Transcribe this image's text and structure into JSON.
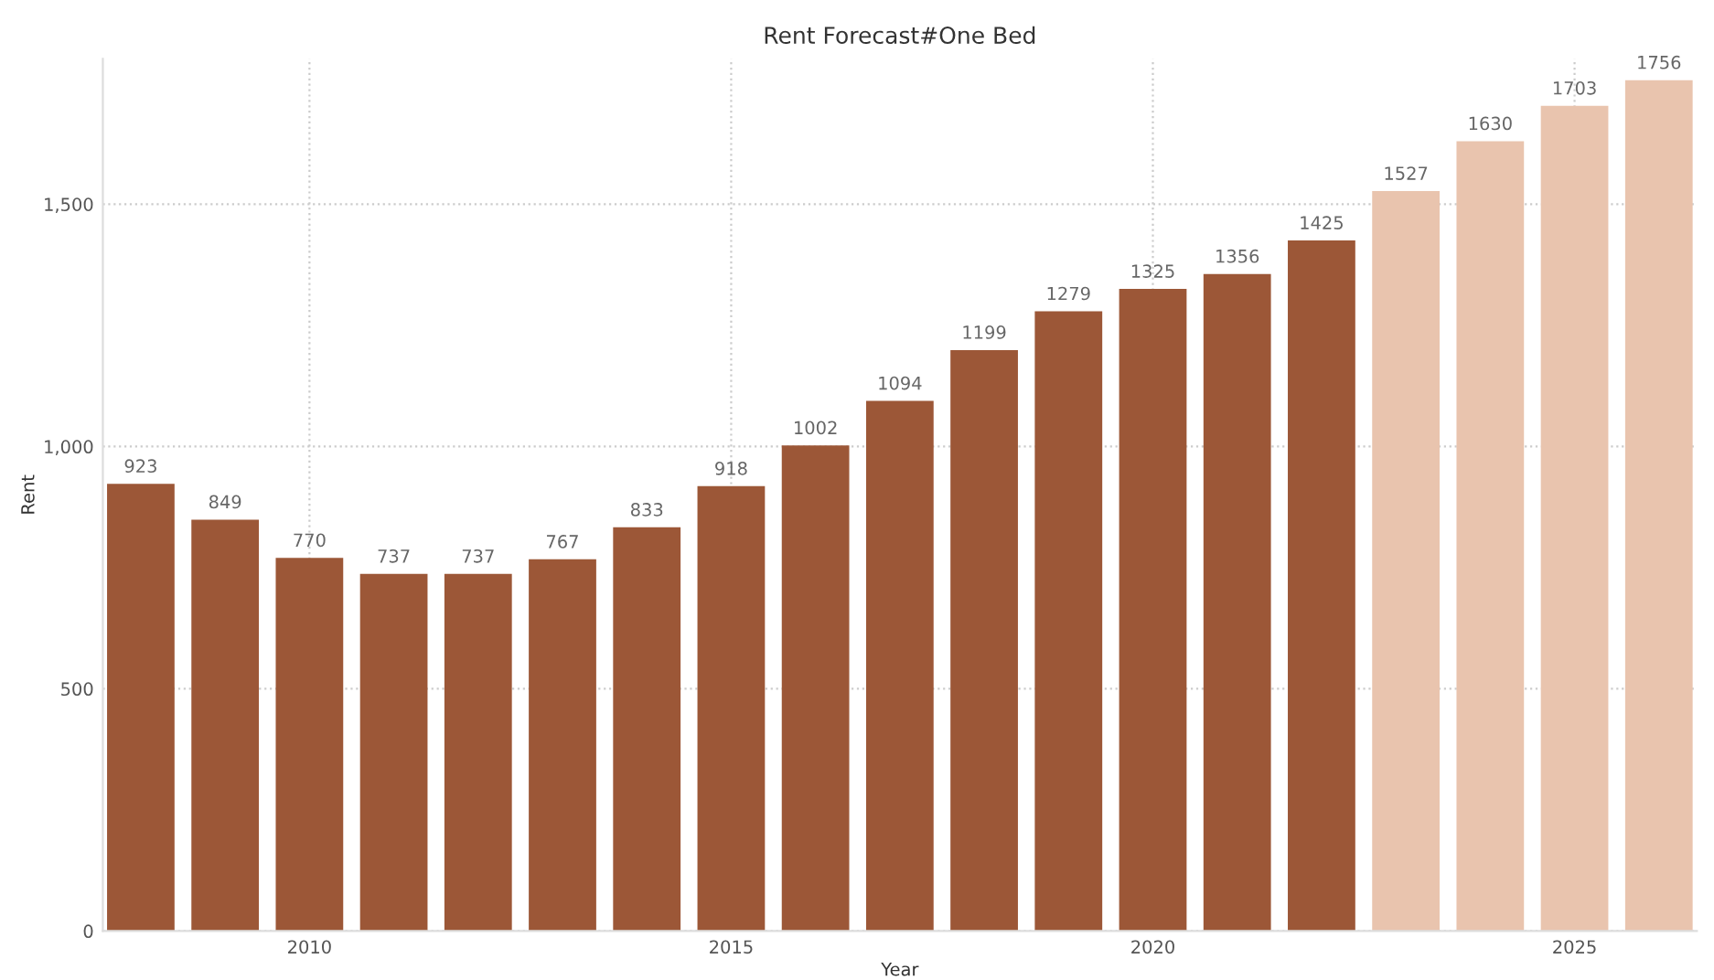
{
  "chart_data": {
    "type": "bar",
    "title": "Rent Forecast#One Bed",
    "xlabel": "Year",
    "ylabel": "Rent",
    "x": [
      2008,
      2009,
      2010,
      2011,
      2012,
      2013,
      2014,
      2015,
      2016,
      2017,
      2018,
      2019,
      2020,
      2021,
      2022,
      2023,
      2024,
      2025,
      2026
    ],
    "values": [
      923,
      849,
      770,
      737,
      737,
      767,
      833,
      918,
      1002,
      1094,
      1199,
      1279,
      1325,
      1356,
      1425,
      1527,
      1630,
      1703,
      1756
    ],
    "colors": [
      "#9c5737",
      "#9c5737",
      "#9c5737",
      "#9c5737",
      "#9c5737",
      "#9c5737",
      "#9c5737",
      "#9c5737",
      "#9c5737",
      "#9c5737",
      "#9c5737",
      "#9c5737",
      "#9c5737",
      "#9c5737",
      "#9c5737",
      "#e9c4ae",
      "#e9c4ae",
      "#e9c4ae",
      "#e9c4ae"
    ],
    "xlim": [
      2007.55,
      2026.45
    ],
    "xticks": [
      2010,
      2015,
      2020,
      2025
    ],
    "ylim": [
      0,
      1800
    ],
    "yticks": [
      0,
      500,
      {
        "value": 1000,
        "label": "1,000"
      },
      {
        "value": 1500,
        "label": "1,500"
      }
    ],
    "data_labels": true,
    "grid": true,
    "legend": false
  }
}
